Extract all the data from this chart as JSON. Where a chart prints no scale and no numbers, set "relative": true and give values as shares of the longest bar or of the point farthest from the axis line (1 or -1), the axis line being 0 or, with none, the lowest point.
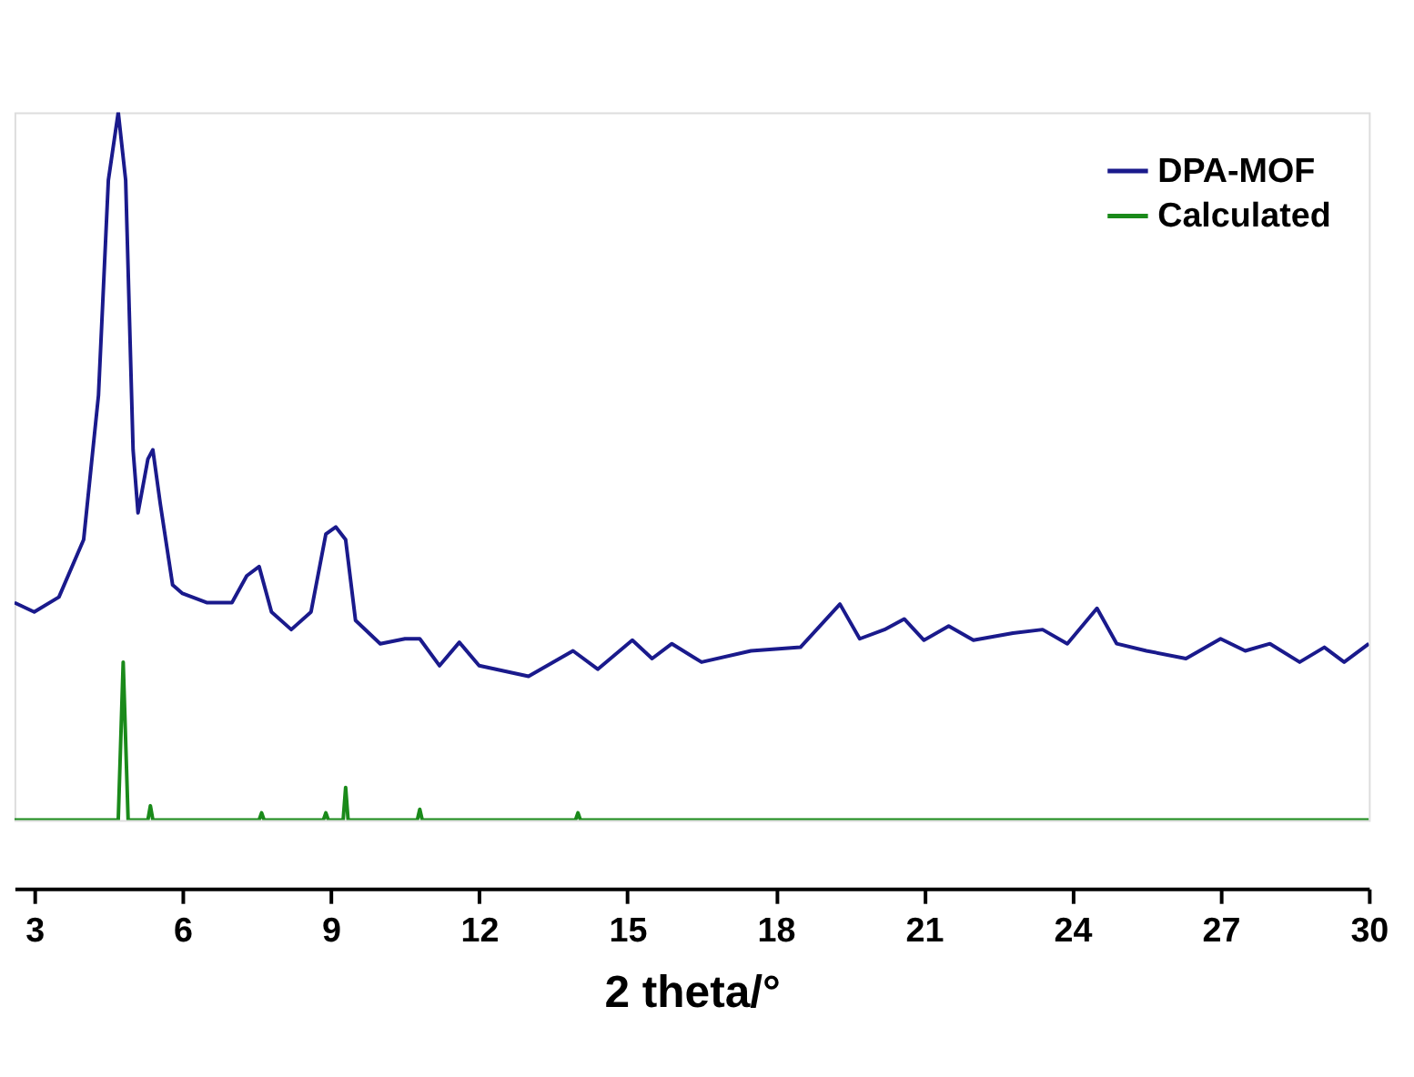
{
  "chart_data": {
    "type": "line",
    "relative": true,
    "xlabel": "2 theta/°",
    "xlim": [
      2.6,
      30
    ],
    "xticks": [
      3,
      6,
      9,
      12,
      15,
      18,
      21,
      24,
      27,
      30
    ],
    "legend": "top right",
    "grid": false,
    "marker": "none",
    "line_style": "solid",
    "series": [
      {
        "name": "DPA-MOF",
        "color": "#1a1a8c",
        "x": [
          2.6,
          3.0,
          3.5,
          4.0,
          4.3,
          4.5,
          4.7,
          4.85,
          5.0,
          5.1,
          5.3,
          5.4,
          5.55,
          5.8,
          6.0,
          6.5,
          7.0,
          7.3,
          7.55,
          7.8,
          8.2,
          8.6,
          8.9,
          9.1,
          9.3,
          9.5,
          10.0,
          10.5,
          10.8,
          11.2,
          11.6,
          12.0,
          13.0,
          13.9,
          14.4,
          15.1,
          15.5,
          15.9,
          16.5,
          17.5,
          18.5,
          19.3,
          19.7,
          20.2,
          20.6,
          21.0,
          21.5,
          22.0,
          22.8,
          23.4,
          23.9,
          24.5,
          24.9,
          25.5,
          26.3,
          27.0,
          27.5,
          28.0,
          28.6,
          29.1,
          29.5,
          30.0
        ],
        "values": [
          0.307,
          0.294,
          0.315,
          0.396,
          0.6,
          0.904,
          1.0,
          0.904,
          0.523,
          0.434,
          0.51,
          0.523,
          0.447,
          0.332,
          0.32,
          0.307,
          0.307,
          0.345,
          0.358,
          0.294,
          0.269,
          0.294,
          0.404,
          0.414,
          0.396,
          0.282,
          0.249,
          0.256,
          0.256,
          0.218,
          0.251,
          0.218,
          0.203,
          0.239,
          0.213,
          0.254,
          0.228,
          0.249,
          0.223,
          0.239,
          0.244,
          0.305,
          0.256,
          0.269,
          0.284,
          0.254,
          0.274,
          0.254,
          0.264,
          0.269,
          0.249,
          0.299,
          0.249,
          0.239,
          0.228,
          0.256,
          0.239,
          0.249,
          0.223,
          0.244,
          0.223,
          0.249
        ]
      },
      {
        "name": "Calculated",
        "color": "#1a8a1a",
        "x": [
          2.6,
          4.7,
          4.8,
          4.9,
          5.3,
          5.35,
          5.4,
          7.55,
          7.6,
          7.65,
          8.85,
          8.9,
          8.95,
          9.25,
          9.3,
          9.35,
          10.75,
          10.8,
          10.85,
          13.95,
          14.0,
          14.05,
          30.0
        ],
        "values": [
          0,
          0,
          0.223,
          0,
          0,
          0.02,
          0,
          0,
          0.01,
          0,
          0,
          0.01,
          0,
          0,
          0.046,
          0,
          0,
          0.015,
          0,
          0,
          0.01,
          0,
          0
        ]
      }
    ]
  }
}
